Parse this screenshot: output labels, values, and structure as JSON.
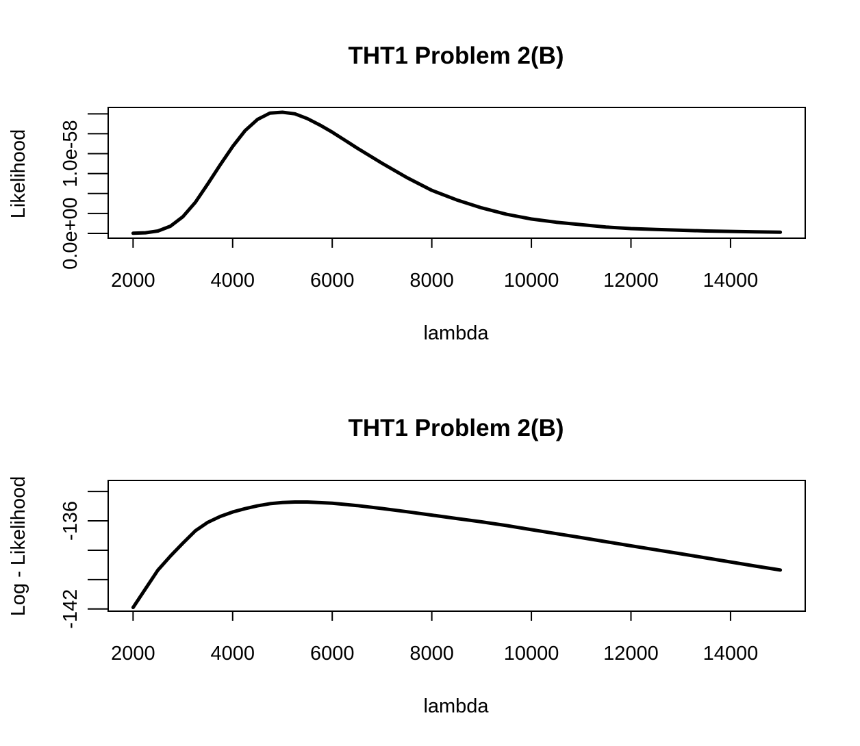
{
  "chart_data": [
    {
      "type": "line",
      "title": "THT1 Problem 2(B)",
      "xlabel": "lambda",
      "ylabel": "Likelihood",
      "xlim": [
        1500,
        15500
      ],
      "ylim": [
        -6e-60,
        1.58e-58
      ],
      "x_ticks": [
        2000,
        4000,
        6000,
        8000,
        10000,
        12000,
        14000
      ],
      "x_tick_labels": [
        "2000",
        "4000",
        "6000",
        "8000",
        "10000",
        "12000",
        "14000"
      ],
      "y_ticks": [
        0,
        2.5e-59,
        5e-59,
        7.5e-59,
        1e-58,
        1.25e-58,
        1.5e-58
      ],
      "y_tick_labels": [
        "0.0e+00",
        "",
        "",
        "",
        "1.0e-58",
        "",
        ""
      ],
      "series": [
        {
          "color": "#000000",
          "x": [
            2000,
            2250,
            2500,
            2750,
            3000,
            3250,
            3500,
            3750,
            4000,
            4250,
            4500,
            4750,
            5000,
            5250,
            5500,
            5750,
            6000,
            6250,
            6500,
            7000,
            7500,
            8000,
            8500,
            9000,
            9500,
            10000,
            10500,
            11000,
            11500,
            12000,
            12500,
            13000,
            13500,
            14000,
            14500,
            15000
          ],
          "y": [
            2e-61,
            8e-61,
            3e-60,
            9e-60,
            2.1e-59,
            3.9e-59,
            6.2e-59,
            8.6e-59,
            1.09e-58,
            1.29e-58,
            1.43e-58,
            1.51e-58,
            1.52e-58,
            1.5e-58,
            1.44e-58,
            1.36e-58,
            1.27e-58,
            1.17e-58,
            1.07e-58,
            8.8e-59,
            7e-59,
            5.4e-59,
            4.2e-59,
            3.2e-59,
            2.4e-59,
            1.8e-59,
            1.4e-59,
            1.1e-59,
            8e-60,
            6e-60,
            5e-60,
            4e-60,
            3e-60,
            2.5e-60,
            2e-60,
            1.5e-60
          ]
        }
      ],
      "grid": false,
      "line_width": 5
    },
    {
      "type": "line",
      "title": "THT1 Problem 2(B)",
      "xlabel": "lambda",
      "ylabel": "Log - Likelihood",
      "xlim": [
        1500,
        15500
      ],
      "ylim": [
        -142.15,
        -133.25
      ],
      "x_ticks": [
        2000,
        4000,
        6000,
        8000,
        10000,
        12000,
        14000
      ],
      "x_tick_labels": [
        "2000",
        "4000",
        "6000",
        "8000",
        "10000",
        "12000",
        "14000"
      ],
      "y_ticks": [
        -142,
        -140,
        -138,
        -136,
        -134
      ],
      "y_tick_labels": [
        "-142",
        "",
        "",
        "-136",
        ""
      ],
      "series": [
        {
          "color": "#000000",
          "x": [
            2000,
            2250,
            2500,
            2750,
            3000,
            3250,
            3500,
            3750,
            4000,
            4250,
            4500,
            4750,
            5000,
            5250,
            5500,
            6000,
            6500,
            7000,
            7500,
            8000,
            8500,
            9000,
            9500,
            10000,
            10500,
            11000,
            11500,
            12000,
            12500,
            13000,
            13500,
            14000,
            14500,
            15000
          ],
          "y": [
            -141.9,
            -140.62,
            -139.35,
            -138.4,
            -137.52,
            -136.68,
            -136.1,
            -135.7,
            -135.4,
            -135.17,
            -134.98,
            -134.83,
            -134.75,
            -134.72,
            -134.72,
            -134.8,
            -134.96,
            -135.16,
            -135.38,
            -135.61,
            -135.84,
            -136.07,
            -136.32,
            -136.6,
            -136.87,
            -137.14,
            -137.42,
            -137.7,
            -137.97,
            -138.24,
            -138.52,
            -138.8,
            -139.08,
            -139.35
          ]
        }
      ],
      "grid": false,
      "line_width": 5
    }
  ]
}
